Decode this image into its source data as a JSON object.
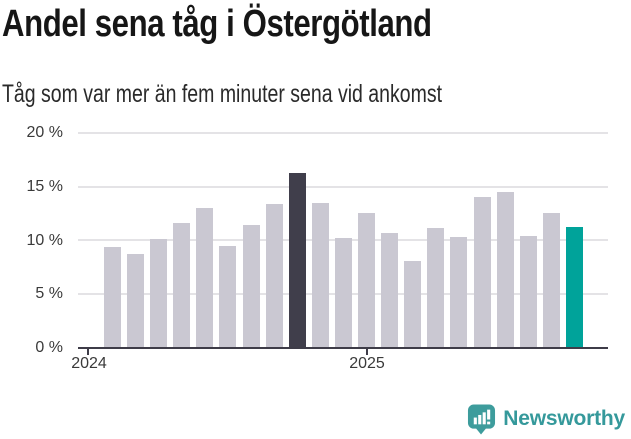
{
  "chart_data": {
    "type": "bar",
    "title": "Andel sena tåg i Östergötland",
    "subtitle": "Tåg som var mer än fem minuter sena vid ankomst",
    "unit": "%",
    "ylim": [
      0,
      20
    ],
    "y_ticks": [
      "20 %",
      "15 %",
      "10 %",
      "5 %",
      "0 %"
    ],
    "x_ticks": [
      "2024",
      "2025"
    ],
    "grid": "horizontal",
    "legend": "none",
    "values": [
      9.4,
      8.7,
      10.1,
      11.6,
      13.0,
      9.5,
      11.4,
      13.4,
      16.3,
      13.5,
      10.2,
      12.5,
      10.7,
      8.1,
      11.1,
      10.3,
      14.0,
      14.5,
      10.4,
      12.5,
      11.2
    ],
    "bar_colors": {
      "default": "#CAC8D2",
      "highlights": {
        "8": "#403E4B",
        "20": "#00A39A"
      }
    },
    "axis_color": "#3E3C48",
    "gridline_color": "#E4E3E6"
  },
  "footer": {
    "logo_text": "Newsworthy",
    "logo_color": "#35999B",
    "logo_icon_color": "#3D9C9C"
  }
}
